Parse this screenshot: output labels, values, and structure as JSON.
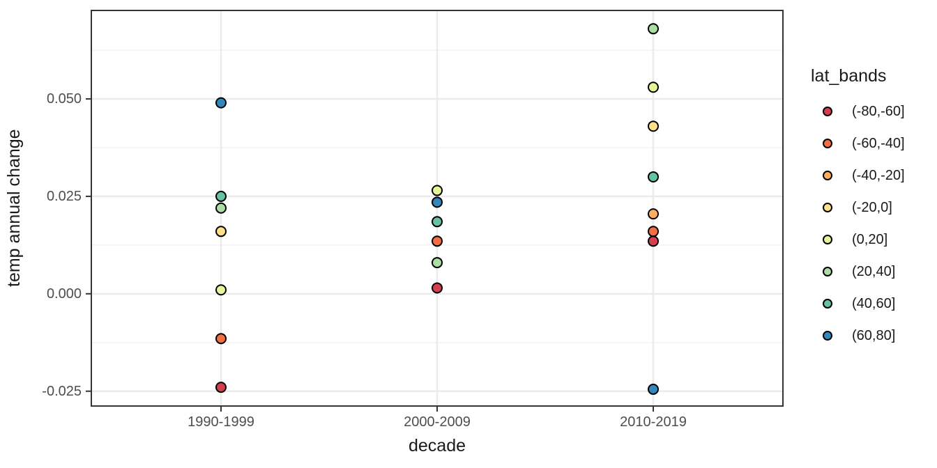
{
  "colors": {
    "background": "#FFFFFF",
    "panel_background": "#FFFFFF",
    "panel_border": "#333333",
    "grid_major": "#EBEBEB",
    "grid_minor": "#F2F2F2",
    "tick_mark": "#333333",
    "axis_text": "#4D4D4D",
    "title_text": "#1A1A1A",
    "point_outline": "#000000"
  },
  "chart_data": {
    "type": "scatter",
    "title": "",
    "xlabel": "decade",
    "ylabel": "temp annual change",
    "legend_title": "lat_bands",
    "legend_position": "right",
    "grid": true,
    "categories": [
      "1990-1999",
      "2000-2009",
      "2010-2019"
    ],
    "y_ticks": [
      0.05,
      0.025,
      0.0,
      -0.025
    ],
    "y_tick_labels": [
      "0.050",
      "0.025",
      "0.000",
      "-0.025"
    ],
    "y_minor_ticks": [
      0.0625,
      0.0375,
      0.0125,
      -0.0125
    ],
    "ylim": [
      -0.0288,
      0.0727
    ],
    "series": [
      {
        "name": "(-80,-60]",
        "color": "#D53E4F",
        "points": [
          {
            "x": "1990-1999",
            "y": -0.024
          },
          {
            "x": "2000-2009",
            "y": 0.0015
          },
          {
            "x": "2010-2019",
            "y": 0.0135
          }
        ]
      },
      {
        "name": "(-60,-40]",
        "color": "#F46D43",
        "points": [
          {
            "x": "1990-1999",
            "y": -0.0115
          },
          {
            "x": "2000-2009",
            "y": 0.0135
          },
          {
            "x": "2010-2019",
            "y": 0.016
          }
        ]
      },
      {
        "name": "(-40,-20]",
        "color": "#FDAE61",
        "points": [
          {
            "x": "2010-2019",
            "y": 0.0205
          }
        ]
      },
      {
        "name": "(-20,0]",
        "color": "#FEE08B",
        "points": [
          {
            "x": "1990-1999",
            "y": 0.016
          },
          {
            "x": "2010-2019",
            "y": 0.043
          }
        ]
      },
      {
        "name": "(0,20]",
        "color": "#E6F598",
        "points": [
          {
            "x": "1990-1999",
            "y": 0.001
          },
          {
            "x": "2000-2009",
            "y": 0.0265
          },
          {
            "x": "2010-2019",
            "y": 0.053
          }
        ]
      },
      {
        "name": "(20,40]",
        "color": "#ABDDA4",
        "points": [
          {
            "x": "1990-1999",
            "y": 0.022
          },
          {
            "x": "2000-2009",
            "y": 0.008
          },
          {
            "x": "2010-2019",
            "y": 0.068
          }
        ]
      },
      {
        "name": "(40,60]",
        "color": "#66C2A5",
        "points": [
          {
            "x": "1990-1999",
            "y": 0.025
          },
          {
            "x": "2000-2009",
            "y": 0.0185
          },
          {
            "x": "2010-2019",
            "y": 0.03
          }
        ]
      },
      {
        "name": "(60,80]",
        "color": "#3288BD",
        "points": [
          {
            "x": "1990-1999",
            "y": 0.049
          },
          {
            "x": "2000-2009",
            "y": 0.0235
          },
          {
            "x": "2010-2019",
            "y": -0.0245
          }
        ]
      }
    ]
  }
}
